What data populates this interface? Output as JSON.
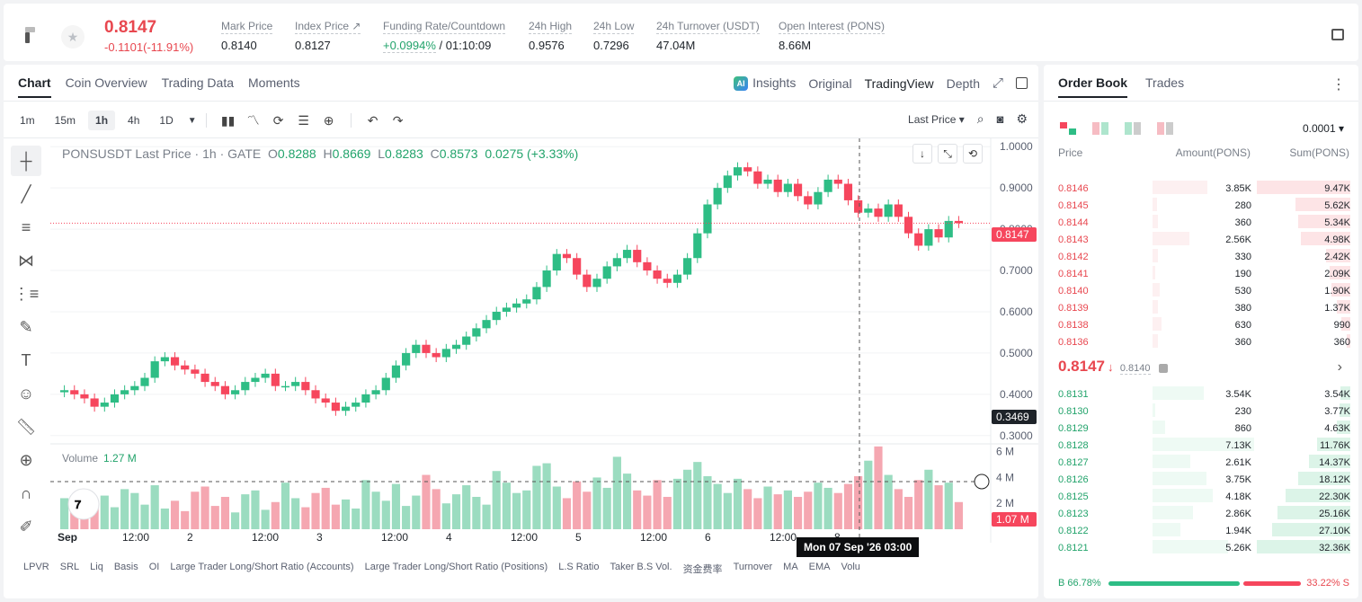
{
  "header": {
    "last_price": "0.8147",
    "change": "-0.1101(-11.91%)",
    "stats": [
      {
        "label": "Mark Price",
        "value": "0.8140"
      },
      {
        "label": "Index Price ↗",
        "value": "0.8127"
      },
      {
        "label": "Funding Rate/Countdown",
        "value_green": "+0.0994%",
        "value": " / 01:10:09"
      },
      {
        "label": "24h High",
        "value": "0.9576"
      },
      {
        "label": "24h Low",
        "value": "0.7296"
      },
      {
        "label": "24h Turnover (USDT)",
        "value": "47.04M"
      },
      {
        "label": "Open Interest (PONS)",
        "value": "8.66M"
      }
    ]
  },
  "chart_tabs": [
    "Chart",
    "Coin Overview",
    "Trading Data",
    "Moments"
  ],
  "view_tabs": {
    "insights": "Insights",
    "original": "Original",
    "tradingview": "TradingView",
    "depth": "Depth"
  },
  "intervals": [
    "1m",
    "15m",
    "1h",
    "4h",
    "1D"
  ],
  "selected_interval": "1h",
  "price_type": "Last Price",
  "legend": {
    "symbol": "PONSUSDT Last Price · 1h · GATE",
    "o": "0.8288",
    "h": "0.8669",
    "l": "0.8283",
    "c": "0.8573",
    "chg": "0.0275 (+3.33%)"
  },
  "volume_legend": {
    "label": "Volume",
    "value": "1.27 M"
  },
  "price_tags": {
    "last": "0.8147",
    "cursor": "0.3469",
    "volume": "1.07 M"
  },
  "crosshair_date": "Mon 07 Sep '26   03:00",
  "indicator_tabs": [
    "LPVR",
    "SRL",
    "Liq",
    "Basis",
    "OI",
    "Large Trader Long/Short Ratio (Accounts)",
    "Large Trader Long/Short Ratio (Positions)",
    "L.S Ratio",
    "Taker B.S Vol.",
    "资金费率",
    "Turnover",
    "MA",
    "EMA",
    "Volu"
  ],
  "chart_data": {
    "type": "candlestick",
    "symbol": "PONSUSDT",
    "interval": "1h",
    "price_axis_ticks": [
      "1.0000",
      "0.9000",
      "0.8000",
      "0.7000",
      "0.6000",
      "0.5000",
      "0.4000",
      "0.3000"
    ],
    "volume_axis_ticks": [
      "6 M",
      "4 M",
      "2 M"
    ],
    "x_ticks": [
      "Sep",
      "12:00",
      "2",
      "12:00",
      "3",
      "12:00",
      "4",
      "12:00",
      "5",
      "12:00",
      "6",
      "12:00",
      "8"
    ],
    "ylim": [
      0.28,
      1.02
    ],
    "close_series": [
      0.41,
      0.4,
      0.39,
      0.37,
      0.38,
      0.4,
      0.41,
      0.42,
      0.44,
      0.48,
      0.49,
      0.47,
      0.46,
      0.45,
      0.43,
      0.42,
      0.4,
      0.41,
      0.43,
      0.44,
      0.45,
      0.42,
      0.42,
      0.43,
      0.41,
      0.39,
      0.38,
      0.36,
      0.37,
      0.38,
      0.4,
      0.41,
      0.44,
      0.47,
      0.5,
      0.52,
      0.5,
      0.49,
      0.51,
      0.52,
      0.54,
      0.56,
      0.58,
      0.6,
      0.61,
      0.62,
      0.63,
      0.66,
      0.7,
      0.74,
      0.73,
      0.69,
      0.66,
      0.68,
      0.71,
      0.73,
      0.75,
      0.72,
      0.7,
      0.68,
      0.67,
      0.69,
      0.73,
      0.79,
      0.86,
      0.9,
      0.93,
      0.95,
      0.94,
      0.91,
      0.92,
      0.89,
      0.91,
      0.88,
      0.86,
      0.89,
      0.92,
      0.91,
      0.87,
      0.84,
      0.85,
      0.83,
      0.86,
      0.83,
      0.79,
      0.76,
      0.8,
      0.78,
      0.82,
      0.8147
    ],
    "volume_series": [
      2.4,
      1.8,
      1.2,
      2.0,
      2.6,
      1.7,
      3.1,
      2.8,
      1.9,
      3.4,
      1.6,
      2.2,
      1.4,
      2.9,
      3.3,
      1.8,
      2.5,
      1.3,
      2.7,
      3.0,
      1.5,
      2.1,
      3.6,
      2.4,
      1.7,
      2.8,
      3.2,
      1.9,
      2.3,
      1.6,
      3.8,
      2.9,
      2.2,
      3.5,
      1.8,
      2.6,
      4.2,
      3.1,
      2.0,
      2.7,
      3.4,
      2.5,
      1.9,
      4.5,
      3.6,
      2.8,
      3.0,
      4.9,
      5.1,
      3.3,
      2.4,
      3.7,
      2.9,
      4.0,
      3.2,
      5.6,
      4.3,
      3.0,
      2.6,
      3.8,
      2.5,
      3.9,
      4.6,
      5.2,
      4.1,
      3.5,
      2.8,
      3.9,
      3.1,
      2.4,
      3.3,
      2.7,
      3.0,
      2.5,
      2.9,
      3.6,
      3.2,
      2.8,
      3.5,
      4.1,
      5.3,
      6.4,
      4.2,
      3.1,
      2.5,
      3.8,
      4.6,
      3.4,
      3.6,
      2.1
    ],
    "last_price": 0.8147,
    "price_line_color": "#f6465d",
    "up_color": "#2ebd85",
    "down_color": "#f6465d"
  },
  "orderbook": {
    "tabs": [
      "Order Book",
      "Trades"
    ],
    "precision": "0.0001",
    "headers": {
      "price": "Price",
      "amount": "Amount(PONS)",
      "sum": "Sum(PONS)"
    },
    "asks": [
      {
        "price": "0.8146",
        "amount": "3.85K",
        "sum": "9.47K",
        "depth": 1.0,
        "amt": 0.54
      },
      {
        "price": "0.8145",
        "amount": "280",
        "sum": "5.62K",
        "depth": 0.59,
        "amt": 0.04
      },
      {
        "price": "0.8144",
        "amount": "360",
        "sum": "5.34K",
        "depth": 0.56,
        "amt": 0.05
      },
      {
        "price": "0.8143",
        "amount": "2.56K",
        "sum": "4.98K",
        "depth": 0.53,
        "amt": 0.36
      },
      {
        "price": "0.8142",
        "amount": "330",
        "sum": "2.42K",
        "depth": 0.26,
        "amt": 0.05
      },
      {
        "price": "0.8141",
        "amount": "190",
        "sum": "2.09K",
        "depth": 0.22,
        "amt": 0.03
      },
      {
        "price": "0.8140",
        "amount": "530",
        "sum": "1.90K",
        "depth": 0.2,
        "amt": 0.07
      },
      {
        "price": "0.8139",
        "amount": "380",
        "sum": "1.37K",
        "depth": 0.14,
        "amt": 0.05
      },
      {
        "price": "0.8138",
        "amount": "630",
        "sum": "990",
        "depth": 0.1,
        "amt": 0.09
      },
      {
        "price": "0.8136",
        "amount": "360",
        "sum": "360",
        "depth": 0.04,
        "amt": 0.05
      }
    ],
    "mid": {
      "price": "0.8147",
      "mark": "0.8140"
    },
    "bids": [
      {
        "price": "0.8131",
        "amount": "3.54K",
        "sum": "3.54K",
        "depth": 0.11,
        "amt": 0.5
      },
      {
        "price": "0.8130",
        "amount": "230",
        "sum": "3.77K",
        "depth": 0.12,
        "amt": 0.03
      },
      {
        "price": "0.8129",
        "amount": "860",
        "sum": "4.63K",
        "depth": 0.14,
        "amt": 0.12
      },
      {
        "price": "0.8128",
        "amount": "7.13K",
        "sum": "11.76K",
        "depth": 0.36,
        "amt": 1.0
      },
      {
        "price": "0.8127",
        "amount": "2.61K",
        "sum": "14.37K",
        "depth": 0.44,
        "amt": 0.37
      },
      {
        "price": "0.8126",
        "amount": "3.75K",
        "sum": "18.12K",
        "depth": 0.56,
        "amt": 0.53
      },
      {
        "price": "0.8125",
        "amount": "4.18K",
        "sum": "22.30K",
        "depth": 0.69,
        "amt": 0.59
      },
      {
        "price": "0.8123",
        "amount": "2.86K",
        "sum": "25.16K",
        "depth": 0.78,
        "amt": 0.4
      },
      {
        "price": "0.8122",
        "amount": "1.94K",
        "sum": "27.10K",
        "depth": 0.84,
        "amt": 0.27
      },
      {
        "price": "0.8121",
        "amount": "5.26K",
        "sum": "32.36K",
        "depth": 1.0,
        "amt": 0.74
      }
    ],
    "ratio": {
      "buy": "B 66.78%",
      "sell": "33.22% S"
    }
  }
}
